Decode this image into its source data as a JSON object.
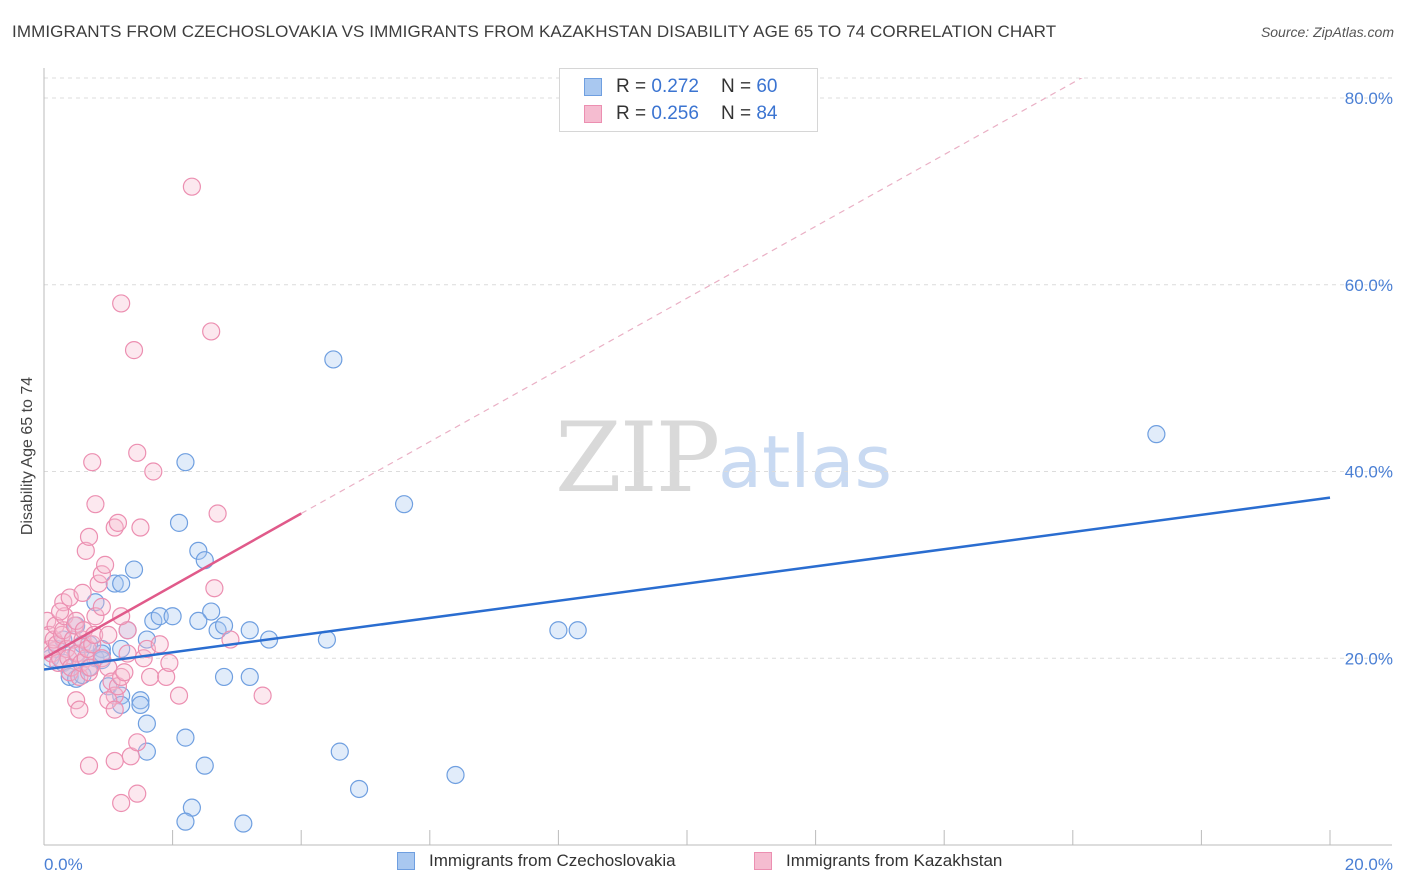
{
  "chart_data": {
    "type": "scatter",
    "title": "IMMIGRANTS FROM CZECHOSLOVAKIA VS IMMIGRANTS FROM KAZAKHSTAN DISABILITY AGE 65 TO 74 CORRELATION CHART",
    "source": "Source: ZipAtlas.com",
    "xlabel": "",
    "ylabel": "Disability Age 65 to 74",
    "xlim": [
      0,
      20
    ],
    "ylim": [
      0,
      80
    ],
    "x_tick_labels": [
      "0.0%",
      "20.0%"
    ],
    "y_tick_labels": [
      "80.0%",
      "60.0%",
      "40.0%",
      "20.0%"
    ],
    "y_ticks": [
      80,
      60,
      40,
      20
    ],
    "watermark": [
      "ZIP",
      "atlas"
    ],
    "legend": [
      {
        "r_label": "R =",
        "r_value": "0.272",
        "n_label": "N =",
        "n_value": "60"
      },
      {
        "r_label": "R =",
        "r_value": "0.256",
        "n_label": "N =",
        "n_value": "84"
      }
    ],
    "series": [
      {
        "name": "Immigrants from Czechoslovakia",
        "color": "#6f9fe0",
        "fill": "#a9c8f0",
        "trend_color": "#2a6dd0",
        "trend": {
          "x0": 0,
          "y0": 18.8,
          "x1": 20,
          "y1": 37.2
        },
        "points": [
          [
            0.1,
            20.0
          ],
          [
            0.2,
            21.0
          ],
          [
            0.3,
            19.5
          ],
          [
            0.4,
            18.5
          ],
          [
            0.5,
            20.5
          ],
          [
            0.6,
            21.5
          ],
          [
            0.7,
            19.0
          ],
          [
            0.8,
            20.0
          ],
          [
            0.9,
            21.0
          ],
          [
            0.4,
            18.0
          ],
          [
            0.5,
            17.8
          ],
          [
            0.6,
            18.2
          ],
          [
            0.8,
            26.0
          ],
          [
            0.9,
            19.8
          ],
          [
            1.1,
            28.0
          ],
          [
            1.2,
            28.0
          ],
          [
            1.4,
            29.5
          ],
          [
            1.3,
            23.0
          ],
          [
            1.2,
            21.0
          ],
          [
            1.0,
            17.0
          ],
          [
            1.2,
            16.0
          ],
          [
            1.5,
            15.5
          ],
          [
            1.5,
            15.0
          ],
          [
            1.2,
            15.0
          ],
          [
            1.6,
            13.0
          ],
          [
            1.7,
            24.0
          ],
          [
            1.8,
            24.5
          ],
          [
            2.0,
            24.5
          ],
          [
            2.1,
            34.5
          ],
          [
            2.2,
            41.0
          ],
          [
            2.4,
            31.5
          ],
          [
            2.5,
            30.5
          ],
          [
            2.6,
            25.0
          ],
          [
            2.7,
            23.0
          ],
          [
            2.8,
            23.5
          ],
          [
            2.8,
            18.0
          ],
          [
            2.4,
            24.0
          ],
          [
            3.2,
            23.0
          ],
          [
            3.2,
            18.0
          ],
          [
            3.5,
            22.0
          ],
          [
            1.6,
            10.0
          ],
          [
            2.2,
            11.5
          ],
          [
            2.5,
            8.5
          ],
          [
            2.3,
            4.0
          ],
          [
            2.2,
            2.5
          ],
          [
            3.1,
            2.3
          ],
          [
            4.4,
            22.0
          ],
          [
            4.6,
            10.0
          ],
          [
            4.5,
            52.0
          ],
          [
            4.9,
            6.0
          ],
          [
            5.6,
            36.5
          ],
          [
            6.4,
            7.5
          ],
          [
            8.0,
            23.0
          ],
          [
            8.3,
            23.0
          ],
          [
            17.3,
            44.0
          ],
          [
            1.6,
            22.0
          ],
          [
            0.7,
            21.5
          ],
          [
            0.3,
            22.0
          ],
          [
            0.5,
            23.5
          ],
          [
            0.9,
            20.5
          ]
        ]
      },
      {
        "name": "Immigrants from Kazakhstan",
        "color": "#ec8fb1",
        "fill": "#f5bcd0",
        "trend_color": "#e05a8a",
        "trend": {
          "x0": 0,
          "y0": 20.0,
          "x1": 4.0,
          "y1": 35.5
        },
        "trend_extended": {
          "x0": 4.0,
          "y0": 35.5,
          "x1": 20,
          "y1": 97.0
        },
        "points": [
          [
            0.05,
            24.0
          ],
          [
            0.08,
            22.5
          ],
          [
            0.1,
            21.0
          ],
          [
            0.12,
            20.5
          ],
          [
            0.15,
            22.0
          ],
          [
            0.18,
            23.5
          ],
          [
            0.2,
            21.5
          ],
          [
            0.22,
            19.5
          ],
          [
            0.25,
            20.0
          ],
          [
            0.28,
            22.5
          ],
          [
            0.3,
            23.0
          ],
          [
            0.32,
            24.5
          ],
          [
            0.35,
            21.0
          ],
          [
            0.38,
            20.0
          ],
          [
            0.4,
            18.5
          ],
          [
            0.42,
            19.0
          ],
          [
            0.45,
            22.0
          ],
          [
            0.48,
            23.5
          ],
          [
            0.5,
            24.0
          ],
          [
            0.52,
            20.5
          ],
          [
            0.55,
            18.0
          ],
          [
            0.58,
            19.5
          ],
          [
            0.6,
            22.0
          ],
          [
            0.62,
            23.0
          ],
          [
            0.65,
            20.0
          ],
          [
            0.68,
            21.0
          ],
          [
            0.7,
            18.5
          ],
          [
            0.72,
            19.0
          ],
          [
            0.75,
            21.5
          ],
          [
            0.78,
            22.5
          ],
          [
            0.8,
            24.5
          ],
          [
            0.85,
            28.0
          ],
          [
            0.9,
            29.0
          ],
          [
            0.95,
            30.0
          ],
          [
            0.65,
            31.5
          ],
          [
            0.7,
            33.0
          ],
          [
            0.8,
            36.5
          ],
          [
            0.75,
            41.0
          ],
          [
            0.9,
            20.0
          ],
          [
            1.0,
            19.0
          ],
          [
            1.05,
            17.5
          ],
          [
            1.1,
            16.0
          ],
          [
            1.0,
            15.5
          ],
          [
            1.1,
            14.5
          ],
          [
            1.15,
            17.0
          ],
          [
            1.2,
            18.0
          ],
          [
            1.25,
            18.5
          ],
          [
            1.3,
            20.5
          ],
          [
            1.3,
            23.0
          ],
          [
            1.2,
            24.5
          ],
          [
            1.1,
            34.0
          ],
          [
            1.15,
            34.5
          ],
          [
            1.2,
            58.0
          ],
          [
            1.4,
            53.0
          ],
          [
            1.45,
            42.0
          ],
          [
            1.5,
            34.0
          ],
          [
            1.55,
            20.0
          ],
          [
            1.6,
            21.0
          ],
          [
            1.65,
            18.0
          ],
          [
            1.7,
            40.0
          ],
          [
            1.8,
            21.5
          ],
          [
            1.9,
            18.0
          ],
          [
            1.95,
            19.5
          ],
          [
            2.1,
            16.0
          ],
          [
            2.3,
            70.5
          ],
          [
            2.6,
            55.0
          ],
          [
            2.65,
            27.5
          ],
          [
            2.7,
            35.5
          ],
          [
            2.9,
            22.0
          ],
          [
            3.4,
            16.0
          ],
          [
            0.7,
            8.5
          ],
          [
            1.1,
            9.0
          ],
          [
            1.35,
            9.5
          ],
          [
            1.45,
            11.0
          ],
          [
            1.2,
            4.5
          ],
          [
            1.45,
            5.5
          ],
          [
            0.5,
            15.5
          ],
          [
            0.55,
            14.5
          ],
          [
            0.3,
            26.0
          ],
          [
            0.25,
            25.0
          ],
          [
            0.4,
            26.5
          ],
          [
            0.6,
            27.0
          ],
          [
            0.9,
            25.5
          ],
          [
            1.0,
            22.5
          ]
        ]
      }
    ]
  },
  "bottom_legend": {
    "czech_label": "Immigrants from Czechoslovakia",
    "kaz_label": "Immigrants from Kazakhstan"
  }
}
